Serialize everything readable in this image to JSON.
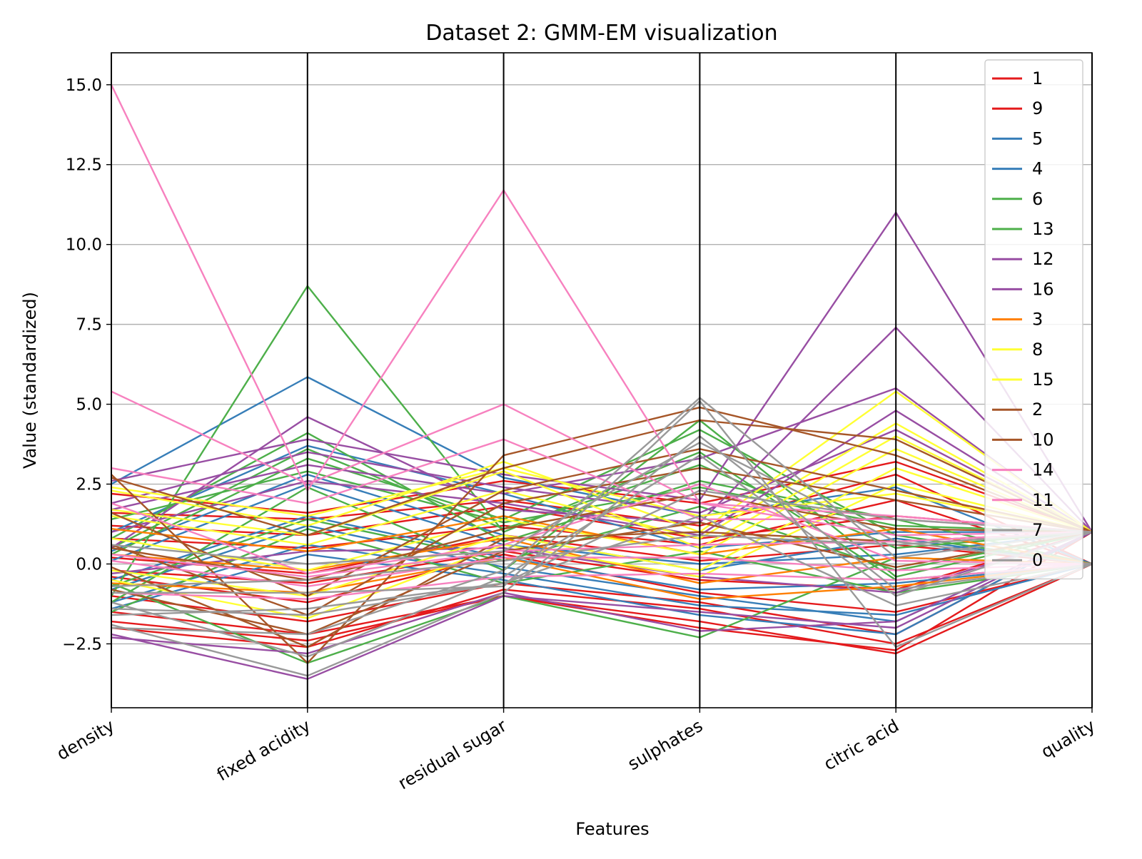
{
  "chart_data": {
    "type": "parallel_coordinates",
    "title": "Dataset 2: GMM-EM visualization",
    "xlabel": "Features",
    "ylabel": "Value (standardized)",
    "features": [
      "density",
      "fixed acidity",
      "residual sugar",
      "sulphates",
      "citric acid",
      "quality"
    ],
    "ylim": [
      -4.5,
      16.0
    ],
    "yticks": [
      -2.5,
      0.0,
      2.5,
      5.0,
      7.5,
      10.0,
      12.5,
      15.0
    ],
    "ytick_labels": [
      "−2.5",
      "0.0",
      "2.5",
      "5.0",
      "7.5",
      "10.0",
      "12.5",
      "15.0"
    ],
    "grid": true,
    "legend_position": "top-right",
    "series": [
      {
        "name": "1",
        "color": "#e41a1c",
        "lines": [
          [
            -1.5,
            -2.2,
            -1.0,
            -1.8,
            -2.8,
            0.0
          ],
          [
            0.8,
            0.5,
            1.2,
            0.6,
            2.0,
            0.0
          ],
          [
            -0.4,
            -1.2,
            0.3,
            -0.9,
            -1.5,
            0.0
          ],
          [
            1.6,
            1.4,
            2.0,
            1.2,
            2.8,
            0.0
          ],
          [
            -2.0,
            -2.6,
            -0.8,
            -1.4,
            -2.5,
            0.0
          ],
          [
            0.2,
            -0.3,
            0.9,
            0.1,
            0.6,
            0.0
          ]
        ]
      },
      {
        "name": "9",
        "color": "#e41a1c",
        "lines": [
          [
            -1.0,
            -1.8,
            -0.6,
            -1.2,
            -2.2,
            1.0
          ],
          [
            1.2,
            0.9,
            1.8,
            0.8,
            1.5,
            1.0
          ],
          [
            -0.2,
            -0.6,
            0.4,
            -0.5,
            -0.8,
            1.0
          ],
          [
            2.2,
            1.6,
            2.6,
            1.9,
            3.2,
            1.0
          ],
          [
            -1.8,
            -2.4,
            -1.0,
            -2.0,
            -2.7,
            1.0
          ]
        ]
      },
      {
        "name": "5",
        "color": "#377eb8",
        "lines": [
          [
            2.5,
            5.85,
            2.7,
            1.5,
            2.4,
            0.0
          ],
          [
            -0.5,
            1.5,
            0.2,
            -0.8,
            -0.6,
            0.0
          ],
          [
            0.4,
            2.8,
            0.9,
            -0.2,
            0.8,
            0.0
          ],
          [
            -1.2,
            0.6,
            -0.3,
            -1.3,
            -1.6,
            0.0
          ]
        ]
      },
      {
        "name": "4",
        "color": "#377eb8",
        "lines": [
          [
            1.0,
            3.7,
            2.2,
            0.5,
            1.0,
            1.0
          ],
          [
            -0.8,
            1.2,
            -0.1,
            -1.0,
            -1.8,
            1.0
          ],
          [
            0.1,
            2.5,
            0.6,
            0.0,
            0.3,
            1.0
          ],
          [
            -1.4,
            0.3,
            -0.5,
            -1.6,
            -2.2,
            1.0
          ]
        ]
      },
      {
        "name": "6",
        "color": "#4daf4a",
        "lines": [
          [
            -1.0,
            8.7,
            1.0,
            3.5,
            -0.5,
            0.0
          ],
          [
            -0.6,
            -3.1,
            -1.0,
            -2.3,
            0.2,
            0.0
          ],
          [
            0.3,
            3.3,
            1.4,
            4.2,
            0.9,
            0.0
          ],
          [
            -1.5,
            1.1,
            -0.6,
            0.4,
            -0.9,
            0.0
          ],
          [
            0.8,
            4.1,
            0.7,
            2.6,
            1.4,
            0.0
          ]
        ]
      },
      {
        "name": "13",
        "color": "#4daf4a",
        "lines": [
          [
            -1.2,
            2.4,
            -0.2,
            4.5,
            -0.4,
            1.0
          ],
          [
            0.5,
            3.6,
            1.1,
            3.1,
            0.5,
            1.0
          ],
          [
            -0.7,
            1.4,
            0.1,
            1.8,
            -0.2,
            1.0
          ],
          [
            1.4,
            2.9,
            1.3,
            2.4,
            1.2,
            1.0
          ]
        ]
      },
      {
        "name": "12",
        "color": "#984ea3",
        "lines": [
          [
            2.6,
            3.9,
            2.8,
            2.0,
            11.0,
            1.0
          ],
          [
            0.5,
            4.6,
            1.7,
            1.3,
            7.4,
            1.0
          ],
          [
            -2.2,
            -3.6,
            -1.0,
            -1.5,
            -2.0,
            1.0
          ],
          [
            1.7,
            3.1,
            2.2,
            3.3,
            5.5,
            1.0
          ]
        ]
      },
      {
        "name": "16",
        "color": "#984ea3",
        "lines": [
          [
            -2.3,
            -2.8,
            -0.9,
            -2.1,
            -1.8,
            1.0
          ],
          [
            1.0,
            2.6,
            1.9,
            0.9,
            4.8,
            1.0
          ],
          [
            -0.3,
            0.4,
            0.5,
            -0.4,
            -0.9,
            1.0
          ],
          [
            1.9,
            3.5,
            2.4,
            1.6,
            4.2,
            1.0
          ]
        ]
      },
      {
        "name": "3",
        "color": "#ff7f00",
        "lines": [
          [
            1.1,
            0.4,
            1.5,
            0.3,
            1.1,
            0.0
          ],
          [
            0.3,
            -0.2,
            0.8,
            -0.6,
            0.2,
            0.0
          ],
          [
            -0.6,
            -0.9,
            0.2,
            -1.1,
            -0.7,
            0.0
          ]
        ]
      },
      {
        "name": "8",
        "color": "#ffff33",
        "lines": [
          [
            2.3,
            1.2,
            3.2,
            1.0,
            5.4,
            1.0
          ],
          [
            0.8,
            -0.2,
            1.4,
            0.3,
            3.6,
            1.0
          ],
          [
            -0.5,
            -1.7,
            0.6,
            -0.4,
            2.5,
            1.0
          ],
          [
            1.5,
            0.6,
            2.3,
            0.8,
            4.4,
            1.0
          ]
        ]
      },
      {
        "name": "15",
        "color": "#ffff33",
        "lines": [
          [
            1.7,
            0.9,
            2.9,
            0.5,
            4.0,
            1.0
          ],
          [
            -0.2,
            -1.0,
            0.9,
            -0.2,
            3.0,
            1.0
          ],
          [
            2.4,
            1.5,
            3.0,
            1.5,
            2.2,
            1.0
          ]
        ]
      },
      {
        "name": "2",
        "color": "#a65628",
        "lines": [
          [
            2.8,
            -3.1,
            3.4,
            4.9,
            3.4,
            1.0
          ],
          [
            0.5,
            -0.5,
            1.1,
            2.2,
            1.1,
            1.0
          ],
          [
            -0.8,
            -2.2,
            0.4,
            1.3,
            -0.1,
            1.0
          ],
          [
            1.6,
            -1.0,
            2.3,
            3.6,
            2.3,
            1.0
          ]
        ]
      },
      {
        "name": "10",
        "color": "#a65628",
        "lines": [
          [
            2.7,
            0.9,
            3.0,
            4.5,
            3.9,
            1.0
          ],
          [
            0.6,
            -1.6,
            1.9,
            3.0,
            2.0,
            1.0
          ],
          [
            -0.1,
            -2.6,
            0.8,
            1.0,
            0.7,
            1.0
          ]
        ]
      },
      {
        "name": "14",
        "color": "#f781bf",
        "lines": [
          [
            15.0,
            2.3,
            11.7,
            1.9,
            1.5,
            1.0
          ],
          [
            5.4,
            2.5,
            5.0,
            1.9,
            0.9,
            1.0
          ],
          [
            3.0,
            1.9,
            3.9,
            1.4,
            1.4,
            1.0
          ],
          [
            0.3,
            -0.4,
            0.4,
            0.6,
            0.7,
            1.0
          ]
        ]
      },
      {
        "name": "11",
        "color": "#f781bf",
        "lines": [
          [
            1.9,
            -0.3,
            0.6,
            2.5,
            0.1,
            0.0
          ],
          [
            0.1,
            -0.7,
            0.2,
            0.2,
            -0.2,
            0.0
          ],
          [
            -0.9,
            -1.1,
            -0.4,
            -0.3,
            -0.5,
            0.0
          ]
        ]
      },
      {
        "name": "7",
        "color": "#999999",
        "lines": [
          [
            -0.9,
            -0.9,
            -0.7,
            5.1,
            -2.6,
            0.0
          ],
          [
            -1.9,
            -3.5,
            -0.9,
            4.0,
            -0.8,
            0.0
          ],
          [
            0.6,
            0.0,
            0.4,
            3.8,
            0.7,
            0.0
          ],
          [
            -1.4,
            -1.6,
            -0.6,
            1.5,
            -1.3,
            0.0
          ]
        ]
      },
      {
        "name": "0",
        "color": "#999999",
        "lines": [
          [
            -2.0,
            -2.2,
            -0.2,
            5.2,
            0.2,
            1.0
          ],
          [
            -1.6,
            -1.4,
            -0.6,
            2.3,
            1.4,
            1.0
          ],
          [
            -0.7,
            -0.5,
            0.1,
            0.9,
            0.6,
            1.0
          ],
          [
            -1.2,
            -2.9,
            -0.4,
            3.4,
            -1.0,
            1.0
          ]
        ]
      }
    ]
  }
}
